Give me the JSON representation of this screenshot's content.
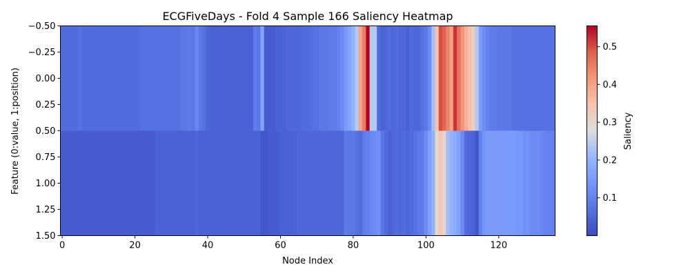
{
  "chart_data": {
    "type": "heatmap",
    "title": "ECGFiveDays - Fold 4 Sample 166 Saliency Heatmap",
    "xlabel": "Node Index",
    "ylabel": "Feature (0:value, 1:position)",
    "colorbar_label": "Saliency",
    "colormap": "coolwarm",
    "n_nodes": 136,
    "rows": [
      "0:value",
      "1:position"
    ],
    "xlim": [
      -0.5,
      135.5
    ],
    "ylim": [
      1.5,
      -0.5
    ],
    "x_ticks": [
      0,
      20,
      40,
      60,
      80,
      100,
      120
    ],
    "x_tick_labels": [
      "0",
      "20",
      "40",
      "60",
      "80",
      "100",
      "120"
    ],
    "y_ticks": [
      -0.5,
      -0.25,
      0.0,
      0.25,
      0.5,
      0.75,
      1.0,
      1.25,
      1.5
    ],
    "y_tick_labels": [
      "−0.50",
      "−0.25",
      "0.00",
      "0.25",
      "0.50",
      "0.75",
      "1.00",
      "1.25",
      "1.50"
    ],
    "colorbar_range": [
      0.0,
      0.555
    ],
    "colorbar_ticks": [
      0.1,
      0.2,
      0.3,
      0.4,
      0.5
    ],
    "colorbar_tick_labels": [
      "0.1",
      "0.2",
      "0.3",
      "0.4",
      "0.5"
    ],
    "row0_values": [
      0.06,
      0.06,
      0.06,
      0.06,
      0.06,
      0.07,
      0.06,
      0.06,
      0.06,
      0.06,
      0.06,
      0.06,
      0.06,
      0.06,
      0.06,
      0.06,
      0.06,
      0.06,
      0.06,
      0.06,
      0.06,
      0.06,
      0.07,
      0.07,
      0.07,
      0.07,
      0.07,
      0.07,
      0.07,
      0.07,
      0.07,
      0.07,
      0.07,
      0.08,
      0.08,
      0.09,
      0.08,
      0.11,
      0.08,
      0.07,
      0.05,
      0.04,
      0.04,
      0.04,
      0.04,
      0.04,
      0.04,
      0.04,
      0.04,
      0.04,
      0.04,
      0.04,
      0.04,
      0.09,
      0.08,
      0.17,
      0.03,
      0.03,
      0.03,
      0.04,
      0.04,
      0.04,
      0.05,
      0.05,
      0.05,
      0.05,
      0.06,
      0.06,
      0.06,
      0.07,
      0.07,
      0.08,
      0.08,
      0.08,
      0.09,
      0.09,
      0.1,
      0.12,
      0.15,
      0.17,
      0.2,
      0.24,
      0.4,
      0.45,
      0.56,
      0.24,
      0.24,
      0.06,
      0.04,
      0.05,
      0.06,
      0.05,
      0.06,
      0.05,
      0.05,
      0.04,
      0.06,
      0.05,
      0.05,
      0.07,
      0.08,
      0.12,
      0.22,
      0.35,
      0.5,
      0.48,
      0.44,
      0.4,
      0.52,
      0.46,
      0.42,
      0.38,
      0.35,
      0.32,
      0.24,
      0.15,
      0.12,
      0.1,
      0.09,
      0.09,
      0.08,
      0.08,
      0.08,
      0.08,
      0.07,
      0.07,
      0.07,
      0.07,
      0.07,
      0.07,
      0.07,
      0.07,
      0.07,
      0.07,
      0.07,
      0.07
    ],
    "row1_values": [
      0.03,
      0.03,
      0.03,
      0.03,
      0.03,
      0.03,
      0.03,
      0.03,
      0.03,
      0.03,
      0.03,
      0.03,
      0.03,
      0.03,
      0.03,
      0.03,
      0.03,
      0.03,
      0.03,
      0.03,
      0.03,
      0.03,
      0.03,
      0.03,
      0.03,
      0.03,
      0.04,
      0.04,
      0.04,
      0.04,
      0.04,
      0.04,
      0.04,
      0.04,
      0.04,
      0.04,
      0.04,
      0.05,
      0.04,
      0.04,
      0.04,
      0.04,
      0.04,
      0.04,
      0.04,
      0.04,
      0.04,
      0.04,
      0.04,
      0.04,
      0.04,
      0.04,
      0.04,
      0.04,
      0.04,
      0.02,
      0.02,
      0.03,
      0.03,
      0.03,
      0.04,
      0.04,
      0.04,
      0.04,
      0.04,
      0.05,
      0.05,
      0.05,
      0.05,
      0.05,
      0.05,
      0.05,
      0.05,
      0.05,
      0.05,
      0.05,
      0.05,
      0.05,
      0.09,
      0.08,
      0.08,
      0.07,
      0.06,
      0.09,
      0.1,
      0.11,
      0.12,
      0.13,
      0.08,
      0.06,
      0.04,
      0.05,
      0.06,
      0.05,
      0.06,
      0.05,
      0.06,
      0.07,
      0.08,
      0.09,
      0.12,
      0.16,
      0.2,
      0.3,
      0.34,
      0.3,
      0.22,
      0.2,
      0.18,
      0.16,
      0.12,
      0.06,
      0.05,
      0.04,
      0.02,
      0.1,
      0.14,
      0.15,
      0.15,
      0.15,
      0.15,
      0.15,
      0.15,
      0.15,
      0.15,
      0.14,
      0.14,
      0.13,
      0.13,
      0.12,
      0.12,
      0.12,
      0.11,
      0.1,
      0.1,
      0.1
    ]
  }
}
